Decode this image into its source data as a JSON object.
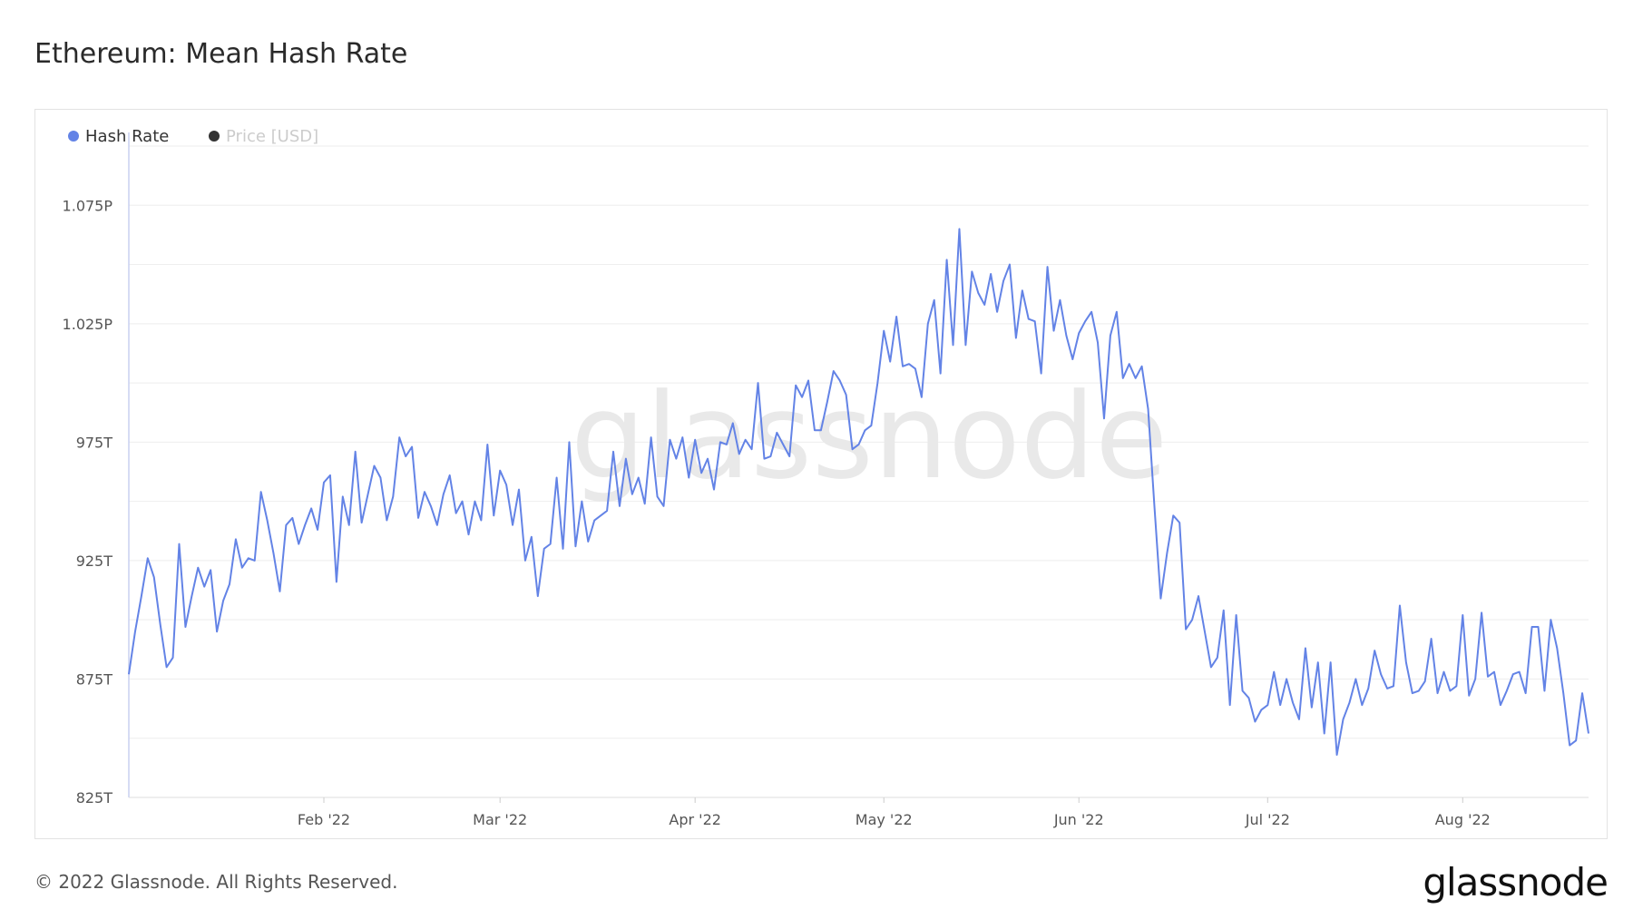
{
  "title": "Ethereum: Mean Hash Rate",
  "footer": "© 2022 Glassnode. All Rights Reserved.",
  "brand": "glassnode",
  "watermark": "glassnode",
  "chart_data": {
    "type": "line",
    "title": "Ethereum: Mean Hash Rate",
    "xlabel": "",
    "ylabel": "",
    "grid": true,
    "legend_position": "top-left",
    "legend": [
      {
        "label": "Hash Rate",
        "color": "#6383e6"
      },
      {
        "label": "Price [USD]",
        "color": "#333333"
      }
    ],
    "ylim": [
      825,
      1100
    ],
    "y_ticks": [
      825,
      875,
      925,
      975,
      1025,
      1075
    ],
    "y_tick_labels": [
      "825T",
      "875T",
      "925T",
      "975T",
      "1.025P",
      "1.075P"
    ],
    "x_ticks": [
      "Feb '22",
      "Mar '22",
      "Apr '22",
      "May '22",
      "Jun '22",
      "Jul '22",
      "Aug '22"
    ],
    "x_tick_days": [
      31,
      59,
      90,
      120,
      151,
      181,
      212
    ],
    "x_start": "2022-01-01",
    "series": [
      {
        "name": "Hash Rate",
        "color": "#6383e6",
        "values": [
          877,
          895,
          910,
          926,
          918,
          898,
          880,
          884,
          932,
          897,
          910,
          922,
          914,
          921,
          895,
          908,
          915,
          934,
          922,
          926,
          925,
          954,
          942,
          928,
          912,
          940,
          943,
          932,
          940,
          947,
          938,
          958,
          961,
          916,
          952,
          940,
          971,
          941,
          953,
          965,
          960,
          942,
          952,
          977,
          969,
          973,
          943,
          954,
          948,
          940,
          953,
          961,
          945,
          950,
          936,
          950,
          942,
          974,
          944,
          963,
          957,
          940,
          955,
          925,
          935,
          910,
          930,
          932,
          960,
          930,
          975,
          931,
          950,
          933,
          942,
          944,
          946,
          971,
          948,
          968,
          953,
          960,
          949,
          977,
          952,
          948,
          976,
          968,
          977,
          960,
          976,
          962,
          968,
          955,
          975,
          974,
          983,
          970,
          976,
          972,
          1000,
          968,
          969,
          979,
          974,
          969,
          999,
          994,
          1001,
          980,
          980,
          992,
          1005,
          1001,
          995,
          972,
          974,
          980,
          982,
          1000,
          1022,
          1009,
          1028,
          1007,
          1008,
          1006,
          994,
          1025,
          1035,
          1004,
          1052,
          1016,
          1065,
          1016,
          1047,
          1038,
          1033,
          1046,
          1030,
          1043,
          1050,
          1019,
          1039,
          1027,
          1026,
          1004,
          1049,
          1022,
          1035,
          1020,
          1010,
          1021,
          1026,
          1030,
          1017,
          985,
          1020,
          1030,
          1002,
          1008,
          1002,
          1007,
          989,
          948,
          909,
          928,
          944,
          941,
          896,
          900,
          910,
          895,
          880,
          884,
          904,
          864,
          902,
          870,
          867,
          857,
          862,
          864,
          878,
          864,
          875,
          865,
          858,
          888,
          863,
          882,
          852,
          882,
          843,
          858,
          865,
          875,
          864,
          871,
          887,
          877,
          871,
          872,
          906,
          882,
          869,
          870,
          874,
          892,
          869,
          878,
          870,
          872,
          902,
          868,
          875,
          903,
          876,
          878,
          864,
          870,
          877,
          878,
          869,
          897,
          897,
          870,
          900,
          888,
          869,
          847,
          849,
          869,
          852
        ]
      }
    ]
  }
}
